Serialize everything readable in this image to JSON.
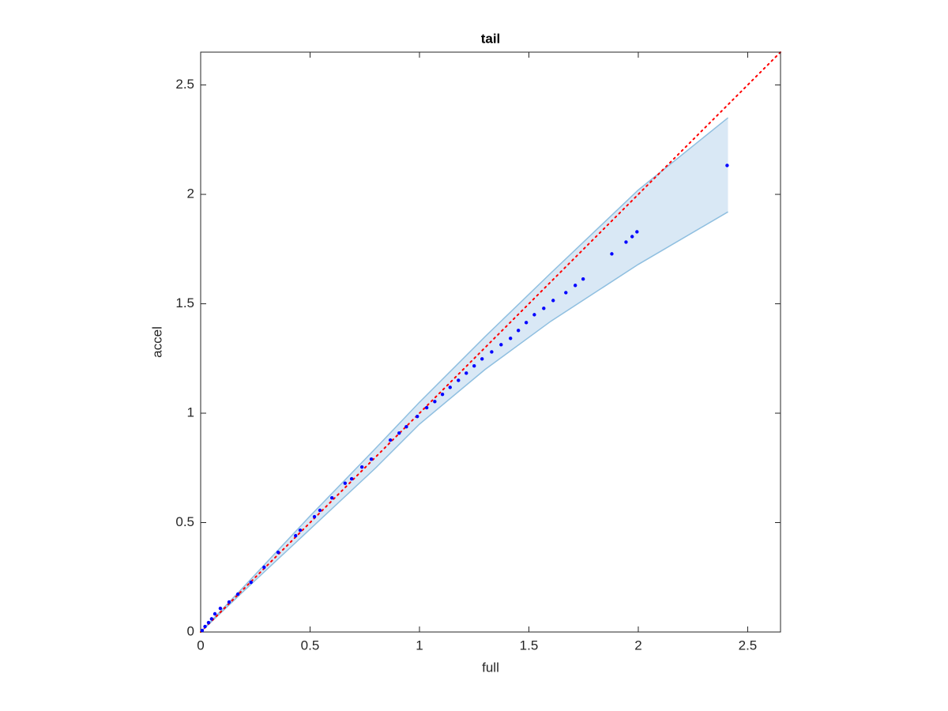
{
  "chart_data": {
    "type": "scatter",
    "title": "tail",
    "x_label": "full",
    "y_label": "accel",
    "xlim": [
      0,
      2.65
    ],
    "ylim": [
      0,
      2.65
    ],
    "xticks": [
      0,
      0.5,
      1,
      1.5,
      2,
      2.5
    ],
    "yticks": [
      0,
      0.5,
      1,
      1.5,
      2,
      2.5
    ],
    "grid": false,
    "series": [
      {
        "color": "#0000ff",
        "x": [
          0.007,
          0.02,
          0.036,
          0.05,
          0.065,
          0.09,
          0.13,
          0.17,
          0.23,
          0.29,
          0.354,
          0.434,
          0.455,
          0.52,
          0.545,
          0.6,
          0.66,
          0.69,
          0.737,
          0.78,
          0.867,
          0.907,
          0.94,
          0.99,
          1.033,
          1.07,
          1.105,
          1.14,
          1.178,
          1.214,
          1.25,
          1.286,
          1.33,
          1.373,
          1.416,
          1.452,
          1.488,
          1.525,
          1.568,
          1.611,
          1.669,
          1.712,
          1.748,
          1.879,
          1.944,
          1.972,
          1.994,
          2.406
        ],
        "values": [
          0.007,
          0.025,
          0.043,
          0.06,
          0.083,
          0.108,
          0.137,
          0.173,
          0.227,
          0.296,
          0.364,
          0.44,
          0.465,
          0.527,
          0.556,
          0.613,
          0.68,
          0.7,
          0.754,
          0.79,
          0.877,
          0.909,
          0.938,
          0.985,
          1.025,
          1.053,
          1.086,
          1.118,
          1.15,
          1.183,
          1.216,
          1.248,
          1.28,
          1.313,
          1.342,
          1.378,
          1.414,
          1.45,
          1.479,
          1.515,
          1.551,
          1.584,
          1.613,
          1.728,
          1.782,
          1.807,
          1.829,
          2.132
        ]
      }
    ],
    "band": {
      "color": "#d9e8f5",
      "edge_color": "#8fbfe0",
      "x": [
        0,
        0.2,
        0.5,
        0.8,
        1.0,
        1.3,
        1.6,
        2.0,
        2.41
      ],
      "upper": [
        0,
        0.21,
        0.53,
        0.84,
        1.05,
        1.35,
        1.64,
        2.02,
        2.35
      ],
      "lower": [
        0,
        0.19,
        0.47,
        0.75,
        0.95,
        1.2,
        1.42,
        1.68,
        1.92
      ]
    },
    "reference_line": {
      "color": "#ff0000",
      "x": [
        0,
        2.65
      ],
      "y": [
        0,
        2.65
      ]
    }
  }
}
